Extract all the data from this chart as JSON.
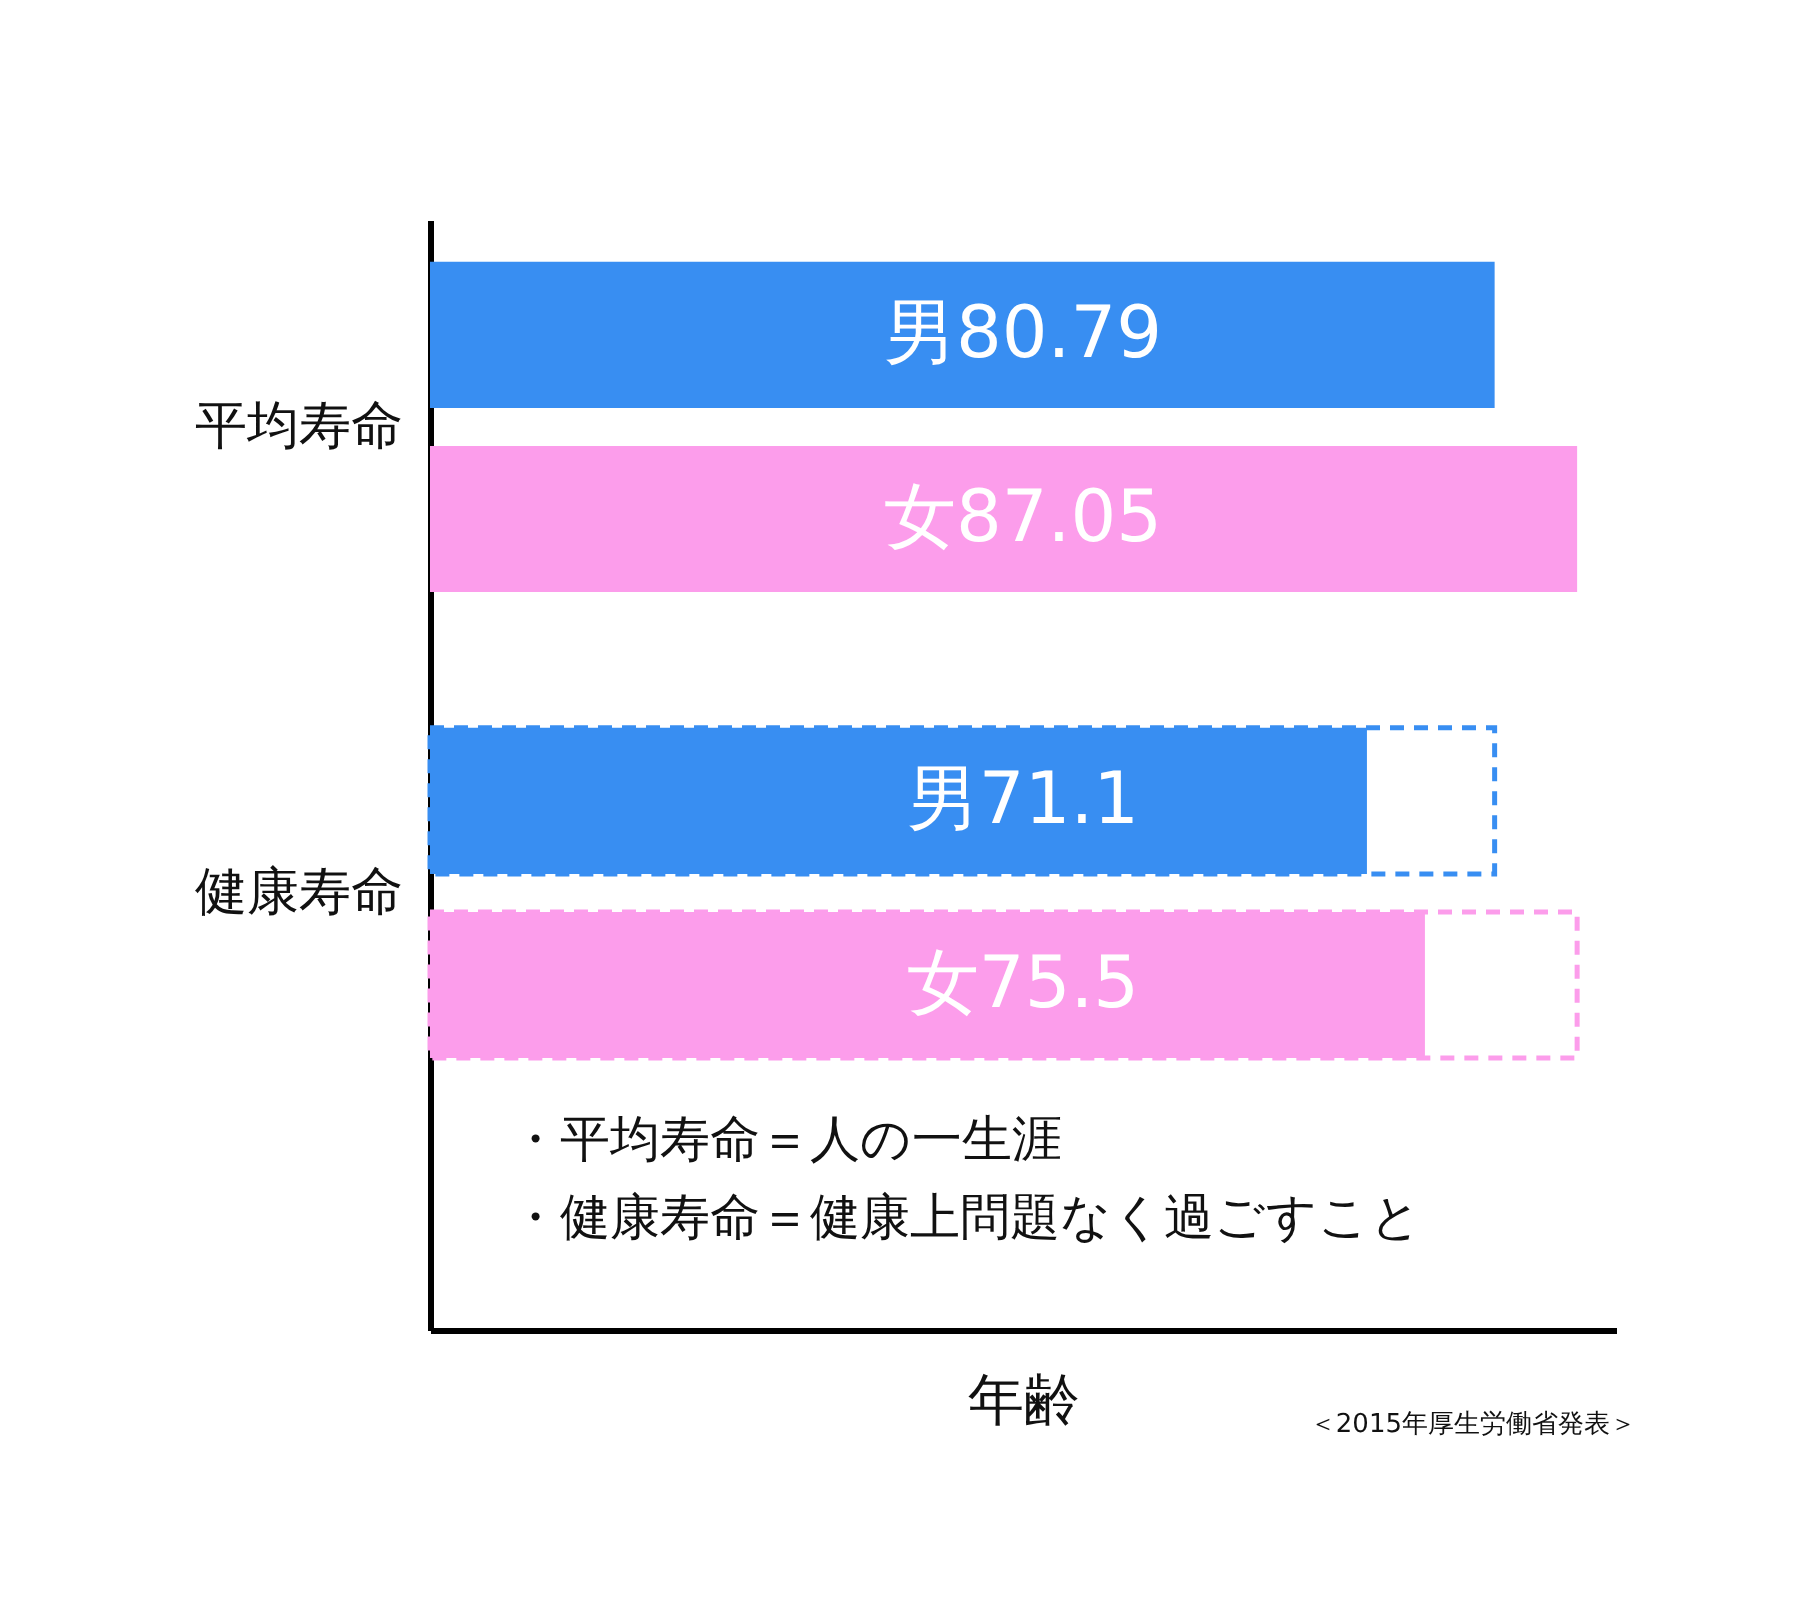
{
  "chart_data": {
    "type": "bar",
    "orientation": "horizontal",
    "categories": [
      "平均寿命",
      "健康寿命"
    ],
    "series": [
      {
        "color": "#388ef2",
        "values": [
          80.79,
          71.1
        ],
        "value_labels": [
          "男80.79",
          "男71.1"
        ]
      },
      {
        "color": "#fc9deb",
        "values": [
          87.05,
          75.5
        ],
        "value_labels": [
          "女87.05",
          "女75.5"
        ]
      },
      {
        "color": "#388ef2",
        "values": [
          null,
          80.79
        ],
        "line_style": "dashed"
      },
      {
        "color": "#fc9deb",
        "values": [
          null,
          87.05
        ],
        "line_style": "dashed"
      }
    ],
    "xlim": [
      0,
      90
    ],
    "xlabel": "年齢",
    "tick_labels": "y",
    "annotations": [
      "・平均寿命＝人の一生涯",
      "・健康寿命＝健康上問題なく過ごすこと",
      "＜2015年厚生労働省発表＞"
    ]
  }
}
